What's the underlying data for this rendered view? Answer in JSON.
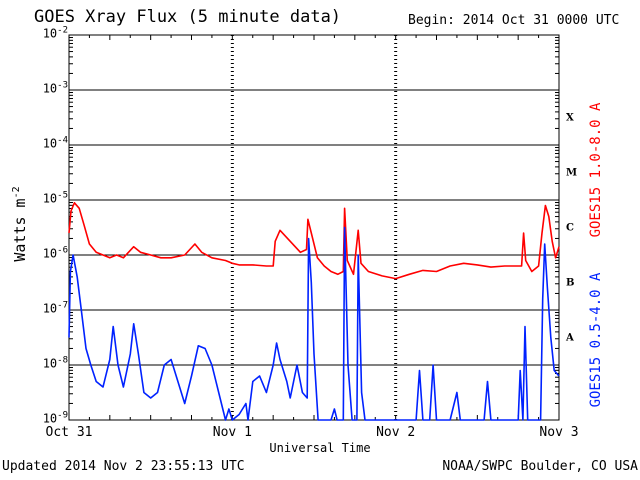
{
  "header": {
    "title": "GOES Xray Flux (5 minute data)",
    "begin": "Begin:  2014 Oct 31 0000 UTC"
  },
  "footer": {
    "updated": "Updated 2014 Nov  2 23:55:13 UTC",
    "credit": "NOAA/SWPC Boulder, CO USA"
  },
  "chart_data": {
    "type": "line",
    "title": "GOES Xray Flux (5 minute data)",
    "xlabel": "Universal Time",
    "ylabel_base": "Watts m",
    "ylabel_exp": "-2",
    "yscale": "log",
    "ylim": [
      1e-09,
      0.01
    ],
    "xlim_hours": [
      0,
      72
    ],
    "x_ticks": [
      {
        "label": "Oct 31",
        "hour": 0
      },
      {
        "label": "Nov 1",
        "hour": 24
      },
      {
        "label": "Nov 2",
        "hour": 48
      },
      {
        "label": "Nov 3",
        "hour": 72
      }
    ],
    "y_ticks": [
      {
        "base": "10",
        "exp": "-9",
        "value": -9
      },
      {
        "base": "10",
        "exp": "-8",
        "value": -8
      },
      {
        "base": "10",
        "exp": "-7",
        "value": -7
      },
      {
        "base": "10",
        "exp": "-6",
        "value": -6
      },
      {
        "base": "10",
        "exp": "-5",
        "value": -5
      },
      {
        "base": "10",
        "exp": "-4",
        "value": -4
      },
      {
        "base": "10",
        "exp": "-3",
        "value": -3
      },
      {
        "base": "10",
        "exp": "-2",
        "value": -2
      }
    ],
    "flare_classes": [
      {
        "label": "A",
        "log_flux": -7.5
      },
      {
        "label": "B",
        "log_flux": -6.5
      },
      {
        "label": "C",
        "log_flux": -5.5
      },
      {
        "label": "M",
        "log_flux": -4.5
      },
      {
        "label": "X",
        "log_flux": -3.5
      }
    ],
    "grid": true,
    "series": [
      {
        "name": "GOES15 1.0-8.0 A",
        "color": "#ff0000",
        "points_hours_log": [
          [
            0,
            -5.6
          ],
          [
            0.3,
            -5.2
          ],
          [
            0.8,
            -5.05
          ],
          [
            1.5,
            -5.15
          ],
          [
            2.2,
            -5.45
          ],
          [
            3,
            -5.8
          ],
          [
            4,
            -5.95
          ],
          [
            5,
            -6.0
          ],
          [
            6,
            -6.05
          ],
          [
            7,
            -6.0
          ],
          [
            8,
            -6.05
          ],
          [
            9.5,
            -5.85
          ],
          [
            10.5,
            -5.95
          ],
          [
            12,
            -6.0
          ],
          [
            13.5,
            -6.05
          ],
          [
            15,
            -6.05
          ],
          [
            17,
            -6.0
          ],
          [
            18.5,
            -5.8
          ],
          [
            19.5,
            -5.95
          ],
          [
            21,
            -6.05
          ],
          [
            23,
            -6.1
          ],
          [
            24,
            -6.15
          ],
          [
            25,
            -6.18
          ],
          [
            27,
            -6.18
          ],
          [
            29,
            -6.2
          ],
          [
            30,
            -6.2
          ],
          [
            30.3,
            -5.75
          ],
          [
            31,
            -5.55
          ],
          [
            32.5,
            -5.75
          ],
          [
            34,
            -5.95
          ],
          [
            34.9,
            -5.9
          ],
          [
            35.1,
            -5.35
          ],
          [
            35.6,
            -5.6
          ],
          [
            36.5,
            -6.05
          ],
          [
            37.5,
            -6.2
          ],
          [
            38.5,
            -6.3
          ],
          [
            39.5,
            -6.35
          ],
          [
            40.3,
            -6.3
          ],
          [
            40.5,
            -5.15
          ],
          [
            40.9,
            -6.1
          ],
          [
            41.8,
            -6.35
          ],
          [
            42.5,
            -5.55
          ],
          [
            42.9,
            -6.15
          ],
          [
            44,
            -6.3
          ],
          [
            46,
            -6.38
          ],
          [
            48,
            -6.43
          ],
          [
            50,
            -6.35
          ],
          [
            52,
            -6.28
          ],
          [
            54,
            -6.3
          ],
          [
            56,
            -6.2
          ],
          [
            58,
            -6.15
          ],
          [
            60,
            -6.18
          ],
          [
            62,
            -6.22
          ],
          [
            64,
            -6.2
          ],
          [
            66,
            -6.2
          ],
          [
            66.5,
            -6.2
          ],
          [
            66.8,
            -5.6
          ],
          [
            67.1,
            -6.1
          ],
          [
            68,
            -6.3
          ],
          [
            69,
            -6.2
          ],
          [
            69.5,
            -5.6
          ],
          [
            70,
            -5.1
          ],
          [
            70.5,
            -5.3
          ],
          [
            71,
            -5.75
          ],
          [
            71.5,
            -6.05
          ],
          [
            72,
            -5.85
          ]
        ]
      },
      {
        "name": "GOES15 0.5-4.0 A",
        "color": "#0022ff",
        "points_hours_log": [
          [
            0,
            -7.5
          ],
          [
            0.2,
            -6.3
          ],
          [
            0.6,
            -6.0
          ],
          [
            1.2,
            -6.4
          ],
          [
            1.8,
            -7.0
          ],
          [
            2.5,
            -7.7
          ],
          [
            3.2,
            -8.0
          ],
          [
            4,
            -8.3
          ],
          [
            5,
            -8.4
          ],
          [
            6,
            -7.9
          ],
          [
            6.5,
            -7.3
          ],
          [
            7.2,
            -8.0
          ],
          [
            8,
            -8.4
          ],
          [
            9,
            -7.8
          ],
          [
            9.5,
            -7.25
          ],
          [
            10.2,
            -7.8
          ],
          [
            11,
            -8.5
          ],
          [
            12,
            -8.6
          ],
          [
            13,
            -8.5
          ],
          [
            14,
            -8.0
          ],
          [
            15,
            -7.9
          ],
          [
            16,
            -8.3
          ],
          [
            17,
            -8.7
          ],
          [
            18,
            -8.2
          ],
          [
            19,
            -7.65
          ],
          [
            20,
            -7.7
          ],
          [
            21,
            -8.0
          ],
          [
            22,
            -8.5
          ],
          [
            23,
            -9.0
          ],
          [
            23.5,
            -8.8
          ],
          [
            24,
            -9.0
          ],
          [
            25,
            -8.9
          ],
          [
            26,
            -8.7
          ],
          [
            26.3,
            -9.0
          ],
          [
            27,
            -8.3
          ],
          [
            28,
            -8.2
          ],
          [
            29,
            -8.5
          ],
          [
            30,
            -8.0
          ],
          [
            30.5,
            -7.6
          ],
          [
            31,
            -7.9
          ],
          [
            32,
            -8.3
          ],
          [
            32.5,
            -8.6
          ],
          [
            33.5,
            -8.0
          ],
          [
            34.3,
            -8.5
          ],
          [
            35,
            -8.6
          ],
          [
            35.2,
            -5.7
          ],
          [
            35.6,
            -6.5
          ],
          [
            36,
            -7.8
          ],
          [
            36.6,
            -9.0
          ],
          [
            38.5,
            -9.0
          ],
          [
            39,
            -8.8
          ],
          [
            39.4,
            -9.0
          ],
          [
            40.3,
            -9.0
          ],
          [
            40.5,
            -5.5
          ],
          [
            41,
            -8.0
          ],
          [
            41.6,
            -9.0
          ],
          [
            42.3,
            -9.0
          ],
          [
            42.5,
            -6.0
          ],
          [
            43,
            -8.5
          ],
          [
            43.5,
            -9.0
          ],
          [
            48,
            -9.0
          ],
          [
            50,
            -9.0
          ],
          [
            51,
            -9.0
          ],
          [
            51.5,
            -8.1
          ],
          [
            52,
            -9.0
          ],
          [
            53,
            -9.0
          ],
          [
            53.5,
            -8.0
          ],
          [
            54,
            -9.0
          ],
          [
            56,
            -9.0
          ],
          [
            57,
            -8.5
          ],
          [
            57.5,
            -9.0
          ],
          [
            61,
            -9.0
          ],
          [
            61.5,
            -8.3
          ],
          [
            62,
            -9.0
          ],
          [
            66,
            -9.0
          ],
          [
            66.3,
            -8.1
          ],
          [
            66.7,
            -9.0
          ],
          [
            67,
            -7.3
          ],
          [
            67.4,
            -9.0
          ],
          [
            68.5,
            -9.0
          ],
          [
            69.3,
            -9.0
          ],
          [
            69.6,
            -6.8
          ],
          [
            69.9,
            -5.8
          ],
          [
            70.3,
            -6.6
          ],
          [
            70.8,
            -7.5
          ],
          [
            71.3,
            -8.1
          ],
          [
            72,
            -8.2
          ]
        ]
      }
    ]
  }
}
